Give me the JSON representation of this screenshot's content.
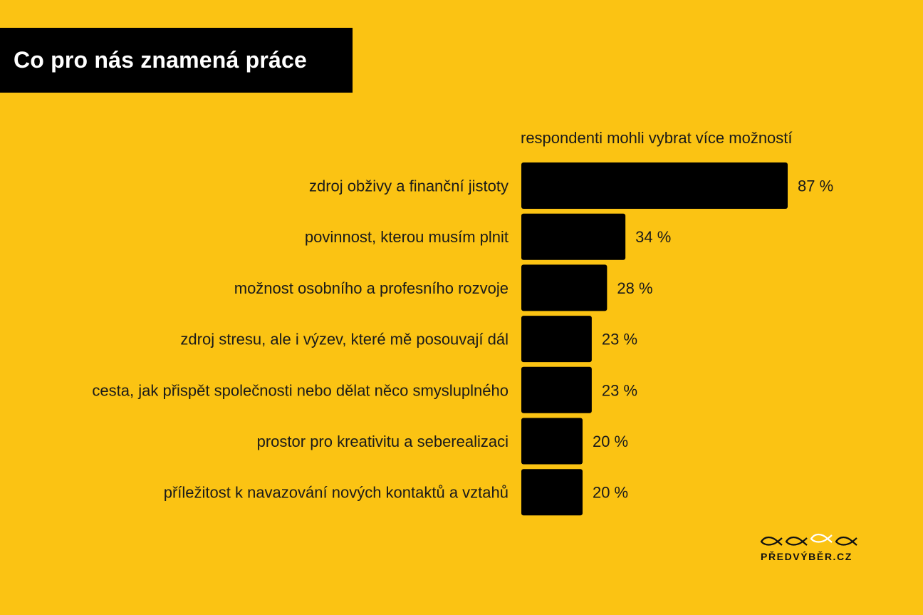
{
  "title": "Co pro nás znamená práce",
  "colors": {
    "background": "#FBC313",
    "bar": "#000000",
    "title_bg": "#000000",
    "title_text": "#FFFFFF"
  },
  "brand": {
    "logo_text": "PŘEDVÝBĚR.CZ",
    "icon": "fish-icons"
  },
  "chart_data": {
    "type": "bar",
    "orientation": "horizontal",
    "title": "Co pro nás znamená práce",
    "subtitle": "respondenti mohli vybrat více možností",
    "categories": [
      "zdroj obživy a finanční jistoty",
      "povinnost, kterou musím plnit",
      "možnost osobního a profesního rozvoje",
      "zdroj stresu, ale i výzev, které mě posouvají dál",
      "cesta, jak přispět společnosti nebo dělat něco smysluplného",
      "prostor pro kreativitu a seberealizaci",
      "příležitost k navazování nových kontaktů a vztahů"
    ],
    "values": [
      87,
      34,
      28,
      23,
      23,
      20,
      20
    ],
    "value_labels": [
      "87 %",
      "34 %",
      "28 %",
      "23 %",
      "23 %",
      "20 %",
      "20 %"
    ],
    "unit": "%",
    "xlim": [
      0,
      100
    ],
    "grid": false,
    "legend": "none"
  }
}
